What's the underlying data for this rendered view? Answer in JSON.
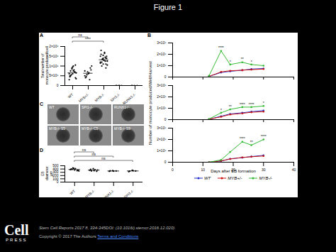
{
  "title": "Figure 1",
  "chart_data": [
    {
      "type": "scatter",
      "panel_label": "A",
      "ylabel": "Total number of monocyte produced/well",
      "categories": [
        "WT",
        "MYB+/-",
        "MYB-/-",
        "SPI1-/-",
        "RUNX1-/-"
      ],
      "color": "#000000",
      "points": [
        [
          600000,
          850000,
          700000,
          500000,
          950000,
          400000,
          750000,
          1000000,
          650000,
          550000,
          800000,
          300000,
          900000,
          700000,
          450000,
          600000,
          1050000,
          500000,
          750000,
          350000
        ],
        [
          500000,
          700000,
          900000,
          400000,
          600000,
          800000,
          450000,
          650000,
          1000000,
          550000,
          300000,
          750000
        ],
        [
          1200000,
          1400000,
          1100000,
          1600000,
          1300000,
          1500000,
          1000000,
          1700000,
          1250000,
          1350000,
          1450000,
          1150000,
          1550000,
          900000,
          1800000,
          1300000,
          1400000,
          1200000,
          1650000,
          1050000,
          1350000,
          1250000,
          1500000,
          1100000,
          1400000
        ],
        [
          0,
          0,
          0,
          0,
          0
        ],
        [
          0,
          0,
          0,
          0
        ]
      ],
      "mean": [
        650000,
        630000,
        1320000,
        0,
        0
      ],
      "annotations": [
        {
          "from": "WT",
          "to": "MYB+/-",
          "text": "ns"
        },
        {
          "from": "WT",
          "to": "MYB-/-",
          "text": "****"
        }
      ],
      "ylim": [
        0,
        2000000
      ],
      "yticks": [
        0,
        {
          "value": 500000,
          "label": "5×10⁵"
        },
        {
          "value": 1000000,
          "label": "1×10⁶"
        },
        {
          "value": 1500000,
          "label": "1.5×10⁶"
        },
        {
          "value": 2000000,
          "label": "2×10⁶"
        }
      ]
    },
    {
      "type": "line",
      "panel_label": "B",
      "ylabel": "Number of monocyte produced/Well/Harvest",
      "marker": "circle",
      "tick_labels": "y",
      "x": [
        12,
        16,
        19,
        23,
        26,
        30
      ],
      "series": [
        {
          "name": "WT",
          "color": "#2233cc",
          "values": [
            5000,
            40000,
            50000,
            60000,
            70000,
            75000
          ]
        },
        {
          "name": "MYB+/-",
          "color": "#cc1111",
          "values": [
            5000,
            45000,
            55000,
            60000,
            65000,
            70000
          ]
        },
        {
          "name": "MYB-/-",
          "color": "#33bb33",
          "values": [
            10000,
            230000,
            110000,
            130000,
            110000,
            100000
          ]
        }
      ],
      "annotations": [
        {
          "x": 16,
          "text": "****"
        },
        {
          "x": 19,
          "text": "*"
        },
        {
          "x": 23,
          "text": "**"
        },
        {
          "x": 26,
          "text": "*"
        }
      ],
      "xlim": [
        0,
        40
      ],
      "xticks": [
        0,
        10,
        20,
        30,
        40
      ],
      "ylim": [
        0,
        300000
      ],
      "yticks": [
        0,
        {
          "value": 100000,
          "label": "1×10⁵"
        },
        {
          "value": 200000,
          "label": "2×10⁵"
        },
        {
          "value": 300000,
          "label": "3×10⁵"
        }
      ]
    },
    {
      "type": "line",
      "marker": "circle",
      "tick_labels": "y",
      "x": [
        12,
        16,
        19,
        23,
        26,
        30
      ],
      "series": [
        {
          "name": "WT",
          "color": "#2233cc",
          "values": [
            3000,
            30000,
            50000,
            60000,
            70000,
            80000
          ]
        },
        {
          "name": "MYB+/-",
          "color": "#cc1111",
          "values": [
            3000,
            25000,
            45000,
            55000,
            65000,
            70000
          ]
        },
        {
          "name": "MYB-/-",
          "color": "#33bb33",
          "values": [
            5000,
            60000,
            90000,
            110000,
            110000,
            120000
          ]
        }
      ],
      "annotations": [
        {
          "x": 16,
          "text": "*"
        },
        {
          "x": 19,
          "text": "**"
        },
        {
          "x": 23,
          "text": "****"
        },
        {
          "x": 26,
          "text": "****"
        },
        {
          "x": 30,
          "text": "*"
        }
      ],
      "xlim": [
        0,
        40
      ],
      "xticks": [
        0,
        10,
        20,
        30,
        40
      ],
      "ylim": [
        0,
        300000
      ],
      "yticks": [
        0,
        {
          "value": 100000,
          "label": "1×10⁵"
        },
        {
          "value": 200000,
          "label": "2×10⁵"
        },
        {
          "value": 300000,
          "label": "3×10⁵"
        }
      ]
    },
    {
      "type": "line",
      "marker": "circle",
      "xlabel": "Days after EB formation",
      "x": [
        12,
        16,
        19,
        23,
        26,
        30
      ],
      "series": [
        {
          "name": "WT",
          "color": "#2233cc",
          "values": [
            0,
            10000,
            30000,
            40000,
            50000,
            60000
          ]
        },
        {
          "name": "MYB+/-",
          "color": "#cc1111",
          "values": [
            0,
            12000,
            28000,
            42000,
            48000,
            55000
          ]
        },
        {
          "name": "MYB-/-",
          "color": "#33bb33",
          "values": [
            0,
            20000,
            90000,
            180000,
            150000,
            200000
          ]
        }
      ],
      "annotations": [
        {
          "x": 23,
          "text": "****"
        },
        {
          "x": 26,
          "text": "**"
        },
        {
          "x": 30,
          "text": "****"
        }
      ],
      "xlim": [
        0,
        40
      ],
      "xticks": [
        0,
        10,
        20,
        30,
        40
      ],
      "ylim": [
        0,
        300000
      ],
      "yticks": [
        0,
        {
          "value": 100000,
          "label": "1×10⁵"
        },
        {
          "value": 200000,
          "label": "2×10⁵"
        },
        {
          "value": 300000,
          "label": "3×10⁵"
        }
      ]
    },
    {
      "type": "scatter",
      "panel_label": "D",
      "ylabel": "EB diameter µm",
      "categories": [
        "WT",
        "MYB-/-",
        "RUNX1-/-",
        "SPI1-/-"
      ],
      "color": "#000000",
      "points": [
        [
          380,
          420,
          350,
          400,
          370,
          360,
          390,
          410,
          340,
          430
        ],
        [
          360,
          410,
          330,
          390,
          350,
          370,
          340,
          380
        ],
        [
          330,
          350,
          340,
          345,
          335
        ],
        [
          320,
          360,
          340,
          335,
          350
        ]
      ],
      "mean": [
        385,
        366,
        340,
        341
      ],
      "annotations": [
        {
          "from": "WT",
          "to": "MYB-/-",
          "text": "ns"
        },
        {
          "from": "WT",
          "to": "RUNX1-/-",
          "text": "ns"
        },
        {
          "from": "WT",
          "to": "SPI1-/-",
          "text": "ns"
        }
      ],
      "ylim": [
        0,
        500
      ],
      "yticks": [
        0,
        100,
        200,
        300,
        400,
        500
      ]
    }
  ],
  "panel_c": {
    "panel_label": "C",
    "images": [
      "WT",
      "SPI1-/-",
      "RUNX1-/-",
      "MYB-/- S5",
      "MYB-/- C5",
      "MYB-/- S9"
    ]
  },
  "footer": {
    "logo": [
      "Cell",
      "PRESS"
    ],
    "citation": "Stem Cell Reports 2017 8, 334-345DOI: (10.1016/j.stemcr.2016.12.020)",
    "copyright": "Copyright © 2017 The Authors",
    "terms": "Terms and Conditions"
  }
}
